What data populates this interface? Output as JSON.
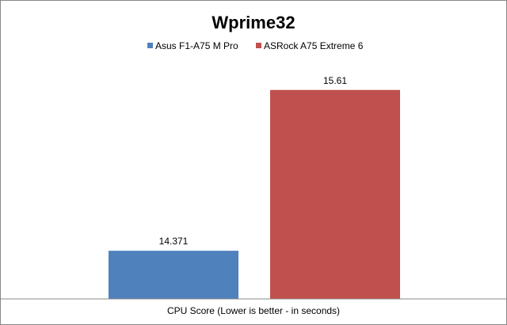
{
  "chart_data": {
    "type": "bar",
    "title": "Wprime32",
    "xlabel": "CPU Score (Lower is better - in seconds)",
    "ylabel": "",
    "categories": [
      "CPU Score (Lower is better - in seconds)"
    ],
    "series": [
      {
        "name": "Asus F1-A75 M Pro",
        "values": [
          14.371
        ],
        "color": "#4F81BD"
      },
      {
        "name": "ASRock A75 Extreme 6",
        "values": [
          15.61
        ],
        "color": "#C0504D"
      }
    ],
    "value_labels": [
      "14.371",
      "15.61"
    ],
    "ylim": [
      14,
      15.7
    ],
    "grid": false,
    "legend_position": "top"
  }
}
